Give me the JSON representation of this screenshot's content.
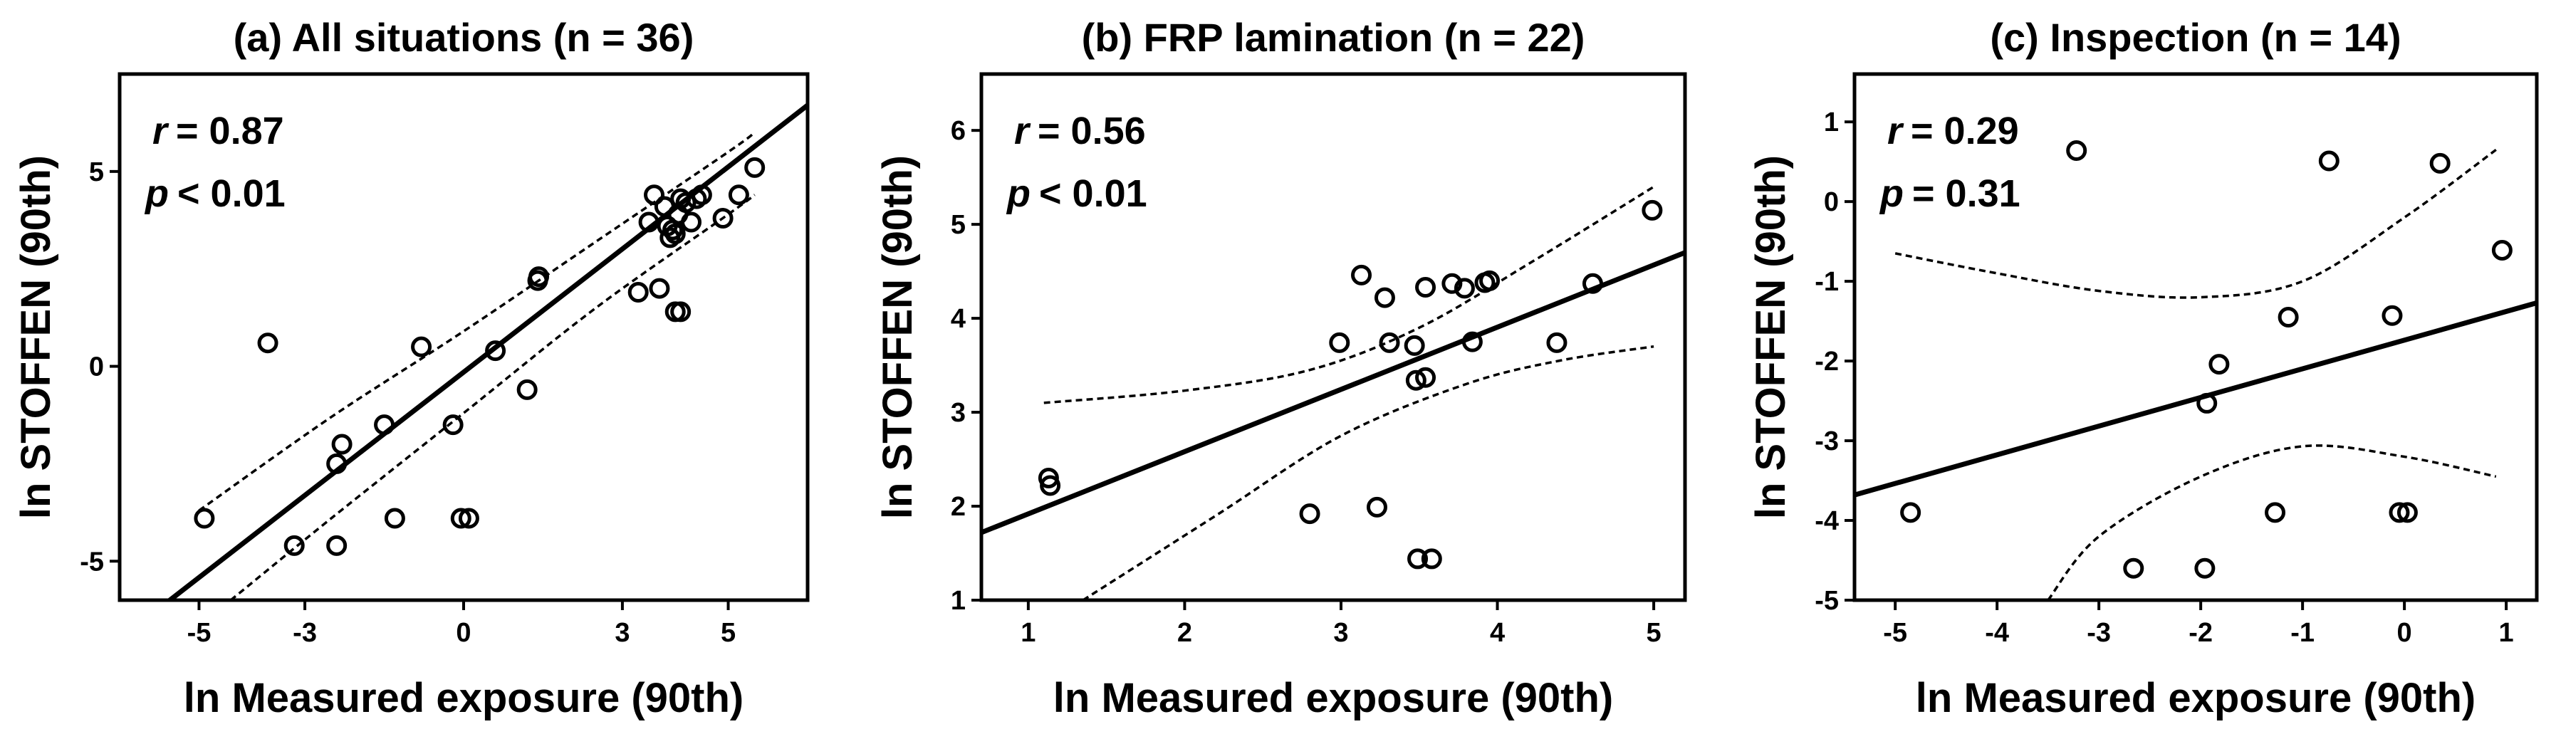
{
  "chart_data": [
    {
      "type": "scatter",
      "title": "(a)  All situations (n = 36)",
      "xlabel": "ln Measured exposure (90th)",
      "ylabel": "ln STOFFEN (90th)",
      "xlim": [
        -6.5,
        6.5
      ],
      "ylim": [
        -6,
        7.5
      ],
      "xticks": [
        -5,
        -3,
        0,
        3,
        5
      ],
      "yticks": [
        -5,
        0,
        5
      ],
      "r_symbol": "r",
      "r_value": "= 0.87",
      "p_symbol": "p",
      "p_value": "< 0.01",
      "points": [
        {
          "x": -4.9,
          "y": -3.9
        },
        {
          "x": -3.7,
          "y": 0.6
        },
        {
          "x": -3.2,
          "y": -4.6
        },
        {
          "x": -2.3,
          "y": -2.0
        },
        {
          "x": -2.4,
          "y": -2.5
        },
        {
          "x": -2.4,
          "y": -4.6
        },
        {
          "x": -1.5,
          "y": -1.5
        },
        {
          "x": -1.3,
          "y": -3.9
        },
        {
          "x": -0.8,
          "y": 0.5
        },
        {
          "x": -0.2,
          "y": -1.5
        },
        {
          "x": -0.05,
          "y": -3.9
        },
        {
          "x": 0.1,
          "y": -3.9
        },
        {
          "x": 0.6,
          "y": 0.4
        },
        {
          "x": 1.2,
          "y": -0.6
        },
        {
          "x": 1.4,
          "y": 2.2
        },
        {
          "x": 1.42,
          "y": 2.3
        },
        {
          "x": 3.3,
          "y": 1.9
        },
        {
          "x": 3.7,
          "y": 2.0
        },
        {
          "x": 4.0,
          "y": 1.4
        },
        {
          "x": 4.1,
          "y": 1.4
        },
        {
          "x": 3.5,
          "y": 3.7
        },
        {
          "x": 3.6,
          "y": 4.4
        },
        {
          "x": 3.8,
          "y": 4.1
        },
        {
          "x": 3.85,
          "y": 3.6
        },
        {
          "x": 3.9,
          "y": 3.3
        },
        {
          "x": 4.0,
          "y": 3.4
        },
        {
          "x": 4.05,
          "y": 3.9
        },
        {
          "x": 4.1,
          "y": 4.3
        },
        {
          "x": 4.2,
          "y": 4.2
        },
        {
          "x": 4.3,
          "y": 3.7
        },
        {
          "x": 4.4,
          "y": 4.3
        },
        {
          "x": 4.5,
          "y": 4.4
        },
        {
          "x": 4.9,
          "y": 3.8
        },
        {
          "x": 5.2,
          "y": 4.4
        },
        {
          "x": 5.5,
          "y": 5.1
        },
        {
          "x": 3.95,
          "y": 3.5
        }
      ],
      "fit_line": [
        [
          -6.5,
          -7.0
        ],
        [
          6.5,
          6.7
        ]
      ],
      "ci_upper": [
        [
          -5.0,
          -3.7
        ],
        [
          -2.5,
          -1.3
        ],
        [
          0.0,
          0.9
        ],
        [
          2.5,
          3.2
        ],
        [
          5.0,
          5.5
        ],
        [
          5.5,
          6.0
        ]
      ],
      "ci_lower": [
        [
          -4.4,
          -6.0
        ],
        [
          -2.5,
          -3.9
        ],
        [
          0.0,
          -1.2
        ],
        [
          2.5,
          1.5
        ],
        [
          5.0,
          3.9
        ],
        [
          5.5,
          4.4
        ]
      ]
    },
    {
      "type": "scatter",
      "title": "(b)  FRP lamination (n = 22)",
      "xlabel": "ln Measured exposure (90th)",
      "ylabel": "ln STOFFEN (90th)",
      "xlim": [
        0.7,
        5.2
      ],
      "ylim": [
        1,
        6.6
      ],
      "xticks": [
        1,
        2,
        3,
        4,
        5
      ],
      "yticks": [
        1,
        2,
        3,
        4,
        5,
        6
      ],
      "r_symbol": "r",
      "r_value": "= 0.56",
      "p_symbol": "p",
      "p_value": "< 0.01",
      "points": [
        {
          "x": 1.13,
          "y": 2.3
        },
        {
          "x": 1.14,
          "y": 2.22
        },
        {
          "x": 2.8,
          "y": 1.92
        },
        {
          "x": 2.99,
          "y": 3.74
        },
        {
          "x": 3.13,
          "y": 4.46
        },
        {
          "x": 3.23,
          "y": 1.99
        },
        {
          "x": 3.28,
          "y": 4.22
        },
        {
          "x": 3.31,
          "y": 3.74
        },
        {
          "x": 3.47,
          "y": 3.71
        },
        {
          "x": 3.49,
          "y": 1.44
        },
        {
          "x": 3.48,
          "y": 3.34
        },
        {
          "x": 3.54,
          "y": 3.37
        },
        {
          "x": 3.54,
          "y": 4.33
        },
        {
          "x": 3.58,
          "y": 1.44
        },
        {
          "x": 3.71,
          "y": 4.37
        },
        {
          "x": 3.79,
          "y": 4.32
        },
        {
          "x": 3.84,
          "y": 3.75
        },
        {
          "x": 3.92,
          "y": 4.38
        },
        {
          "x": 3.95,
          "y": 4.4
        },
        {
          "x": 4.38,
          "y": 3.74
        },
        {
          "x": 4.61,
          "y": 4.37
        },
        {
          "x": 4.99,
          "y": 5.15
        }
      ],
      "fit_line": [
        [
          0.7,
          1.72
        ],
        [
          5.2,
          4.7
        ]
      ],
      "ci_upper": [
        [
          1.1,
          3.1
        ],
        [
          2.0,
          3.23
        ],
        [
          2.8,
          3.45
        ],
        [
          3.5,
          3.9
        ],
        [
          4.2,
          4.58
        ],
        [
          5.0,
          5.4
        ]
      ],
      "ci_lower": [
        [
          1.35,
          1.0
        ],
        [
          2.2,
          1.9
        ],
        [
          3.0,
          2.75
        ],
        [
          3.8,
          3.3
        ],
        [
          4.4,
          3.55
        ],
        [
          5.0,
          3.7
        ]
      ]
    },
    {
      "type": "scatter",
      "title": "(c)  Inspection (n = 14)",
      "xlabel": "ln Measured exposure (90th)",
      "ylabel": "ln STOFFEN (90th)",
      "xlim": [
        -5.4,
        1.3
      ],
      "ylim": [
        -5,
        1.6
      ],
      "xticks": [
        -5,
        -4,
        -3,
        -2,
        -1,
        0,
        1
      ],
      "yticks": [
        -5,
        -4,
        -3,
        -2,
        -1,
        0,
        1
      ],
      "r_symbol": "r",
      "r_value": "= 0.29",
      "p_symbol": "p",
      "p_value": "= 0.31",
      "points": [
        {
          "x": -4.85,
          "y": -3.9
        },
        {
          "x": -3.22,
          "y": 0.64
        },
        {
          "x": -2.66,
          "y": -4.6
        },
        {
          "x": -1.96,
          "y": -4.6
        },
        {
          "x": -1.94,
          "y": -2.53
        },
        {
          "x": -1.82,
          "y": -2.04
        },
        {
          "x": -1.27,
          "y": -3.9
        },
        {
          "x": -1.14,
          "y": -1.45
        },
        {
          "x": -0.74,
          "y": 0.51
        },
        {
          "x": -0.12,
          "y": -1.43
        },
        {
          "x": -0.05,
          "y": -3.9
        },
        {
          "x": 0.03,
          "y": -3.9
        },
        {
          "x": 0.35,
          "y": 0.48
        },
        {
          "x": 0.96,
          "y": -0.61
        }
      ],
      "fit_line": [
        [
          -5.4,
          -3.68
        ],
        [
          1.3,
          -1.27
        ]
      ],
      "ci_upper": [
        [
          -5.0,
          -0.65
        ],
        [
          -4.0,
          -0.9
        ],
        [
          -3.0,
          -1.12
        ],
        [
          -2.0,
          -1.2
        ],
        [
          -1.0,
          -1.0
        ],
        [
          0.0,
          -0.2
        ],
        [
          0.9,
          0.65
        ]
      ],
      "ci_lower": [
        [
          -3.5,
          -5.0
        ],
        [
          -3.0,
          -4.2
        ],
        [
          -2.0,
          -3.45
        ],
        [
          -1.0,
          -3.07
        ],
        [
          0.0,
          -3.2
        ],
        [
          0.9,
          -3.45
        ]
      ]
    }
  ]
}
